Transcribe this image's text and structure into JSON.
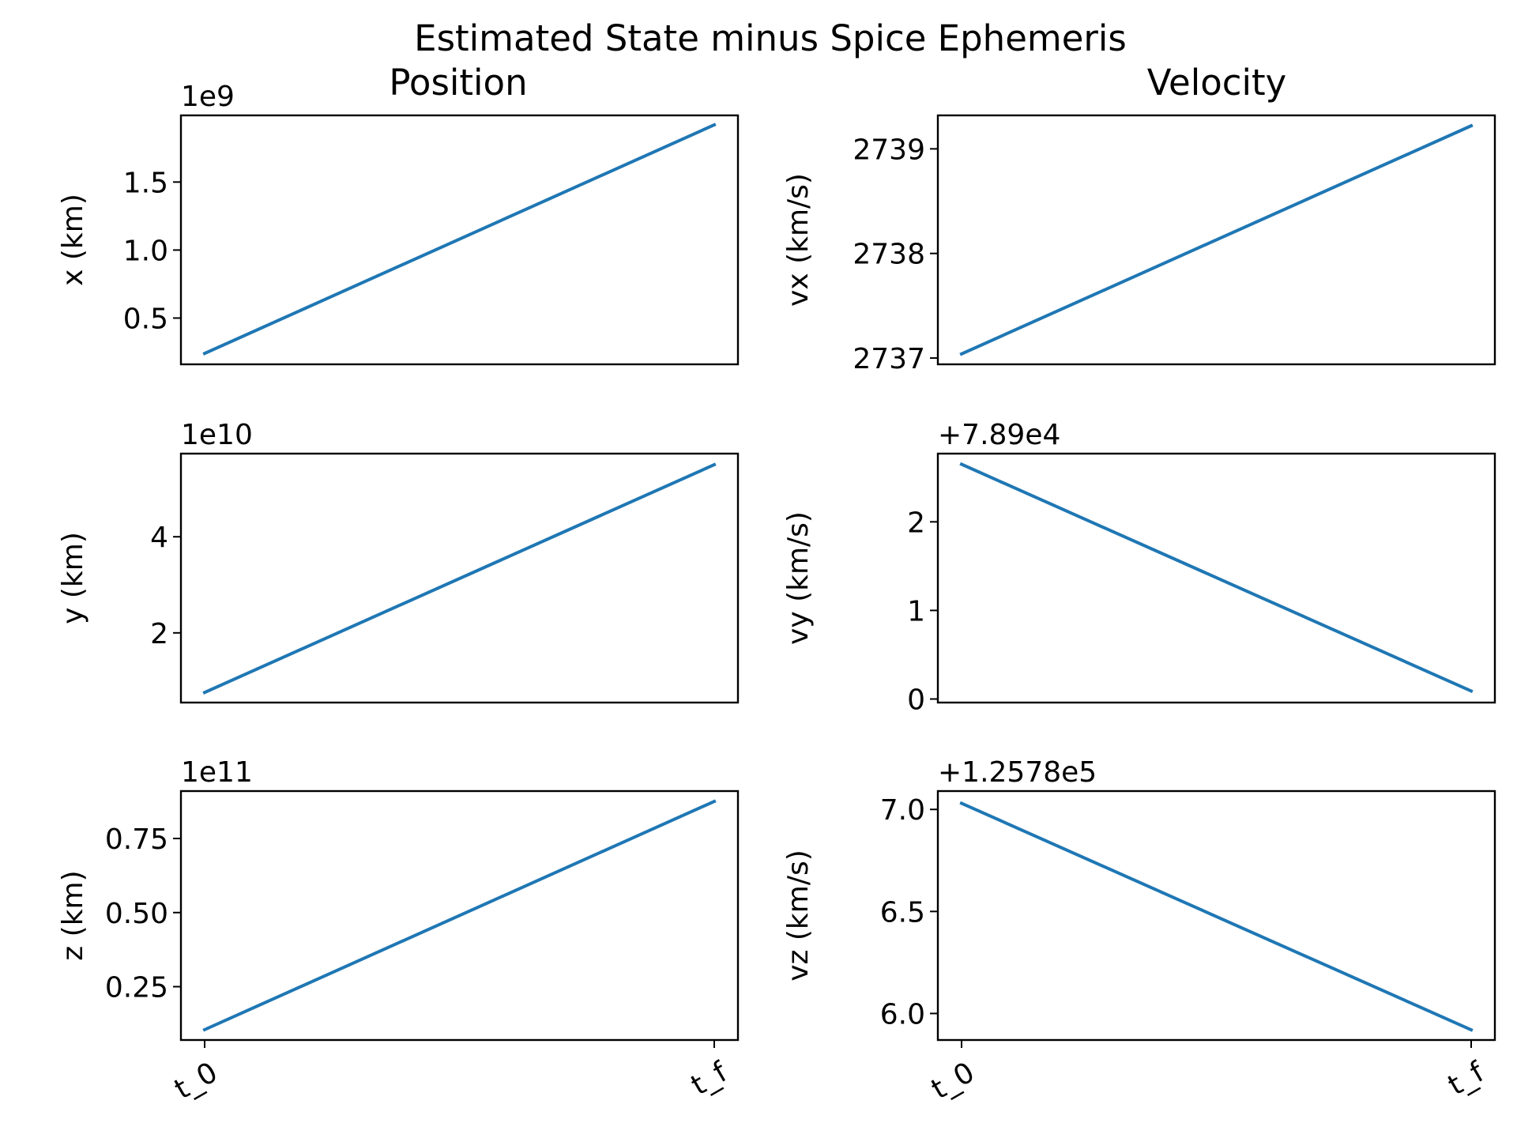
{
  "figure_title": "Estimated State minus Spice Ephemeris",
  "column_titles": [
    "Position",
    "Velocity"
  ],
  "colors": {
    "line": "#1f77b4",
    "axes": "#000000",
    "background": "#ffffff"
  },
  "chart_data": [
    {
      "type": "line",
      "column": "Position",
      "ylabel": "x (km)",
      "offset_text": "1e9",
      "x": [
        "t_0",
        "t_f"
      ],
      "xticks_visible": false,
      "series": [
        {
          "values": [
            240000000,
            1920000000
          ]
        }
      ],
      "ylim": [
        160000000,
        1990000000
      ],
      "yticks": [
        500000000,
        1000000000,
        1500000000
      ],
      "ytick_labels": [
        "0.5",
        "1.0",
        "1.5"
      ],
      "grid": false
    },
    {
      "type": "line",
      "column": "Velocity",
      "ylabel": "vx (km/s)",
      "offset_text": "",
      "x": [
        "t_0",
        "t_f"
      ],
      "xticks_visible": false,
      "series": [
        {
          "values": [
            2737.04,
            2739.22
          ]
        }
      ],
      "ylim": [
        2736.94,
        2739.32
      ],
      "yticks": [
        2737,
        2738,
        2739
      ],
      "ytick_labels": [
        "2737",
        "2738",
        "2739"
      ],
      "grid": false
    },
    {
      "type": "line",
      "column": "Position",
      "ylabel": "y (km)",
      "offset_text": "1e10",
      "x": [
        "t_0",
        "t_f"
      ],
      "xticks_visible": false,
      "series": [
        {
          "values": [
            7600000000,
            55000000000
          ]
        }
      ],
      "ylim": [
        5500000000,
        57300000000
      ],
      "yticks": [
        20000000000,
        40000000000
      ],
      "ytick_labels": [
        "2",
        "4"
      ],
      "grid": false
    },
    {
      "type": "line",
      "column": "Velocity",
      "ylabel": "vy (km/s)",
      "offset_text": "+7.89e4",
      "x": [
        "t_0",
        "t_f"
      ],
      "xticks_visible": false,
      "series": [
        {
          "values": [
            2.65,
            0.09
          ]
        }
      ],
      "ylim": [
        -0.04,
        2.77
      ],
      "yticks": [
        0,
        1,
        2
      ],
      "ytick_labels": [
        "0",
        "1",
        "2"
      ],
      "grid": false
    },
    {
      "type": "line",
      "column": "Position",
      "ylabel": "z (km)",
      "offset_text": "1e11",
      "x": [
        "t_0",
        "t_f"
      ],
      "xticks_visible": true,
      "series": [
        {
          "values": [
            10500000000,
            87500000000
          ]
        }
      ],
      "ylim": [
        7000000000,
        91000000000
      ],
      "yticks": [
        25000000000,
        50000000000,
        75000000000
      ],
      "ytick_labels": [
        "0.25",
        "0.50",
        "0.75"
      ],
      "grid": false
    },
    {
      "type": "line",
      "column": "Velocity",
      "ylabel": "vz (km/s)",
      "offset_text": "+1.2578e5",
      "x": [
        "t_0",
        "t_f"
      ],
      "xticks_visible": true,
      "series": [
        {
          "values": [
            7.03,
            5.92
          ]
        }
      ],
      "ylim": [
        5.87,
        7.09
      ],
      "yticks": [
        6.0,
        6.5,
        7.0
      ],
      "ytick_labels": [
        "6.0",
        "6.5",
        "7.0"
      ],
      "grid": false
    }
  ]
}
